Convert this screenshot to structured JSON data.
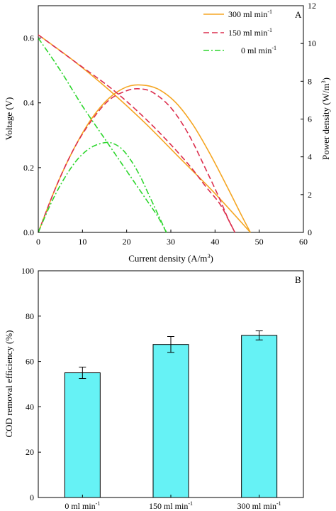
{
  "figure": {
    "panel_a_letter": "A",
    "panel_b_letter": "B"
  },
  "colors": {
    "300": "#F5A623",
    "150": "#DC2F4E",
    "0": "#2ED62E",
    "bar_fill": "#66F2F5",
    "axis": "#000000"
  },
  "chart_data": [
    {
      "type": "line",
      "panel": "A",
      "xlabel": "Current density (A/m3)",
      "xlabel_main": "Current density (A/m",
      "xlabel_sup": "3",
      "xlabel_end": ")",
      "ylabel": "Voltage (V)",
      "y2label": "Power density (W/m3)",
      "y2label_main": "Power density (W/m",
      "y2label_sup": "3",
      "y2label_end": ")",
      "xlim": [
        0,
        60
      ],
      "ylim": [
        0,
        0.7
      ],
      "y2lim": [
        0,
        12
      ],
      "xticks": [
        "0",
        "10",
        "20",
        "30",
        "40",
        "50",
        "60"
      ],
      "yticks": [
        "0.0",
        "0.2",
        "0.4",
        "0.6"
      ],
      "y2ticks": [
        "0",
        "2",
        "4",
        "6",
        "8",
        "10",
        "12"
      ],
      "legend_position": "top-right",
      "series": [
        {
          "name": "300 ml min-1",
          "name_main": "300 ml min",
          "name_sup": "-1",
          "key": "300",
          "style": "solid",
          "voltage": {
            "x": [
              0,
              8,
              16,
              24,
              32,
              40,
              48
            ],
            "y": [
              0.61,
              0.53,
              0.44,
              0.34,
              0.23,
              0.12,
              0.0
            ]
          },
          "power": {
            "x": [
              0,
              4,
              8,
              12,
              16,
              20,
              23.5,
              27,
              31,
              35,
              39,
              43,
              46,
              48
            ],
            "y": [
              0,
              2.4,
              4.4,
              6.0,
              7.1,
              7.7,
              7.8,
              7.6,
              6.9,
              5.7,
              4.1,
              2.3,
              0.9,
              0
            ]
          }
        },
        {
          "name": "150 ml min-1",
          "name_main": "150 ml min",
          "name_sup": "-1",
          "key": "150",
          "style": "dashed",
          "voltage": {
            "x": [
              0,
              8,
              16,
              22,
              28,
              34,
              38,
              41,
              43,
              44.5
            ],
            "y": [
              0.61,
              0.53,
              0.45,
              0.38,
              0.3,
              0.21,
              0.14,
              0.09,
              0.04,
              0.0
            ]
          },
          "power": {
            "x": [
              0,
              4,
              8,
              12,
              16,
              20,
              23,
              26,
              30,
              34,
              38,
              41,
              43,
              44.5
            ],
            "y": [
              0,
              2.4,
              4.4,
              5.9,
              7.0,
              7.5,
              7.6,
              7.4,
              6.6,
              5.2,
              3.3,
              1.8,
              0.7,
              0
            ]
          }
        },
        {
          "name": "0 ml min-1",
          "name_main": "0 ml min",
          "name_sup": "-1",
          "key": "0",
          "style": "dashdot",
          "voltage": {
            "x": [
              0,
              5,
              10,
              15,
              20,
              24,
              27,
              29
            ],
            "y": [
              0.6,
              0.5,
              0.39,
              0.29,
              0.19,
              0.11,
              0.05,
              0.0
            ]
          },
          "power": {
            "x": [
              0,
              3,
              6,
              9,
              12,
              15,
              17,
              19,
              21,
              23,
              25,
              27,
              29
            ],
            "y": [
              0,
              1.6,
              2.9,
              3.9,
              4.5,
              4.75,
              4.7,
              4.4,
              3.8,
              3.0,
              2.0,
              1.0,
              0
            ]
          }
        }
      ]
    },
    {
      "type": "bar",
      "panel": "B",
      "ylabel": "COD removal efficiency (%)",
      "ylim": [
        0,
        100
      ],
      "yticks": [
        "0",
        "20",
        "40",
        "60",
        "80",
        "100"
      ],
      "categories": [
        "0 ml min-1",
        "150 ml min-1",
        "300 ml min-1"
      ],
      "category_main": [
        "0 ml min",
        "150 ml min",
        "300 ml min"
      ],
      "category_sup": [
        "-1",
        "-1",
        "-1"
      ],
      "values": [
        55,
        67.5,
        71.5
      ],
      "errors": [
        2.5,
        3.5,
        2
      ]
    }
  ]
}
